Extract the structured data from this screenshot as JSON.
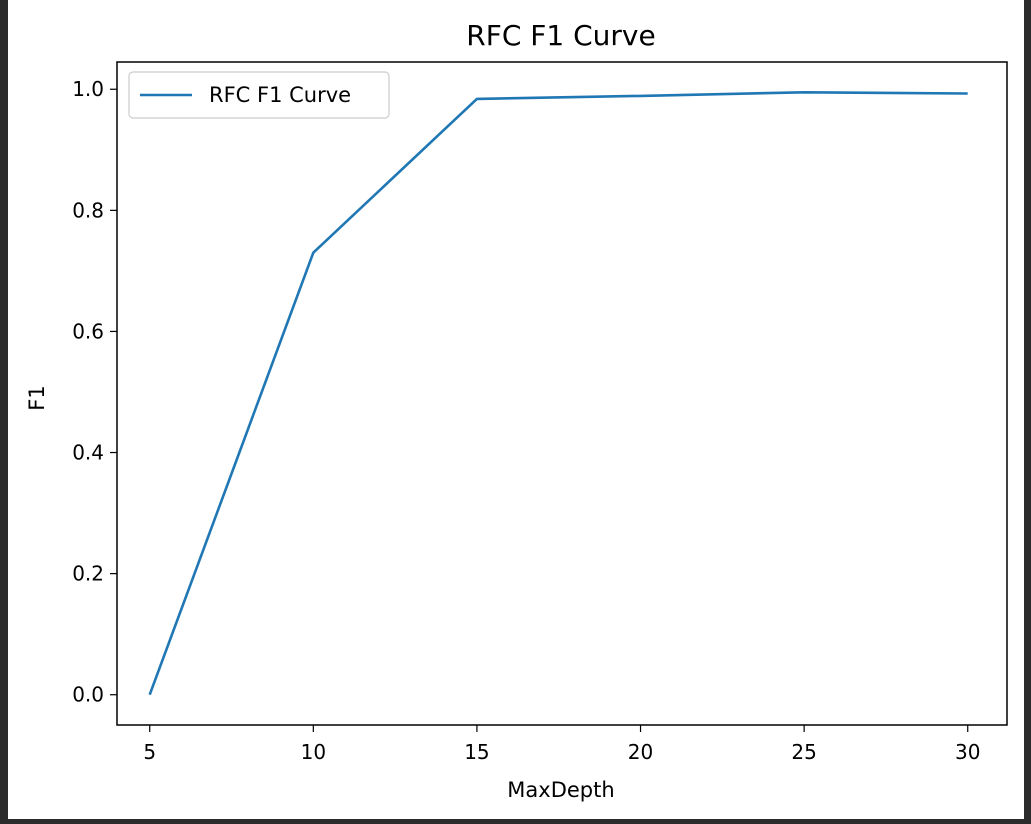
{
  "chart_data": {
    "type": "line",
    "title": "RFC F1 Curve",
    "xlabel": "MaxDepth",
    "ylabel": "F1",
    "x": [
      5,
      10,
      15,
      20,
      25,
      30
    ],
    "series": [
      {
        "name": "RFC F1 Curve",
        "color": "#1f77b4",
        "values": [
          0.0,
          0.73,
          0.984,
          0.989,
          0.995,
          0.993
        ]
      }
    ],
    "xlim": [
      4,
      31.2
    ],
    "ylim": [
      -0.05,
      1.045
    ],
    "xticks": [
      5,
      10,
      15,
      20,
      25,
      30
    ],
    "xtick_labels": [
      "5",
      "10",
      "15",
      "20",
      "25",
      "30"
    ],
    "yticks": [
      0.0,
      0.2,
      0.4,
      0.6,
      0.8,
      1.0
    ],
    "ytick_labels": [
      "0.0",
      "0.2",
      "0.4",
      "0.6",
      "0.8",
      "1.0"
    ],
    "grid": false,
    "legend_position": "top-left"
  }
}
